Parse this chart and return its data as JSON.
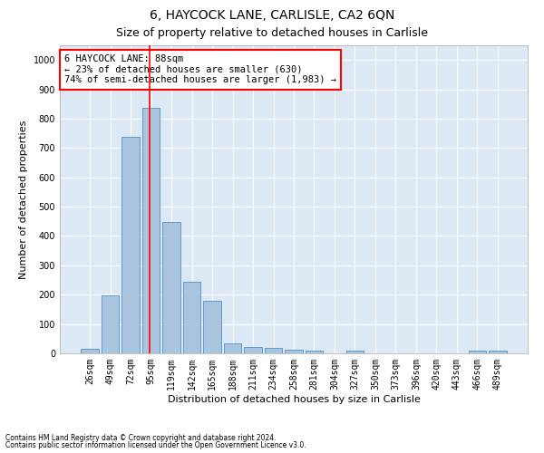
{
  "title": "6, HAYCOCK LANE, CARLISLE, CA2 6QN",
  "subtitle": "Size of property relative to detached houses in Carlisle",
  "xlabel": "Distribution of detached houses by size in Carlisle",
  "ylabel": "Number of detached properties",
  "footnote1": "Contains HM Land Registry data © Crown copyright and database right 2024.",
  "footnote2": "Contains public sector information licensed under the Open Government Licence v3.0.",
  "categories": [
    "26sqm",
    "49sqm",
    "72sqm",
    "95sqm",
    "119sqm",
    "142sqm",
    "165sqm",
    "188sqm",
    "211sqm",
    "234sqm",
    "258sqm",
    "281sqm",
    "304sqm",
    "327sqm",
    "350sqm",
    "373sqm",
    "396sqm",
    "420sqm",
    "443sqm",
    "466sqm",
    "489sqm"
  ],
  "values": [
    15,
    198,
    738,
    838,
    448,
    243,
    180,
    35,
    23,
    18,
    12,
    8,
    0,
    10,
    0,
    0,
    0,
    0,
    0,
    10,
    10
  ],
  "bar_color": "#aac4dd",
  "bar_edgecolor": "#5b9bd5",
  "vline_x": 2.93,
  "vline_color": "red",
  "annotation_text": "6 HAYCOCK LANE: 88sqm\n← 23% of detached houses are smaller (630)\n74% of semi-detached houses are larger (1,983) →",
  "annotation_box_color": "white",
  "annotation_box_edgecolor": "red",
  "ylim": [
    0,
    1050
  ],
  "yticks": [
    0,
    100,
    200,
    300,
    400,
    500,
    600,
    700,
    800,
    900,
    1000
  ],
  "background_color": "#dce8f4",
  "grid_color": "white",
  "title_fontsize": 10,
  "subtitle_fontsize": 9,
  "tick_fontsize": 7,
  "xlabel_fontsize": 8,
  "ylabel_fontsize": 8,
  "annotation_fontsize": 7.5
}
